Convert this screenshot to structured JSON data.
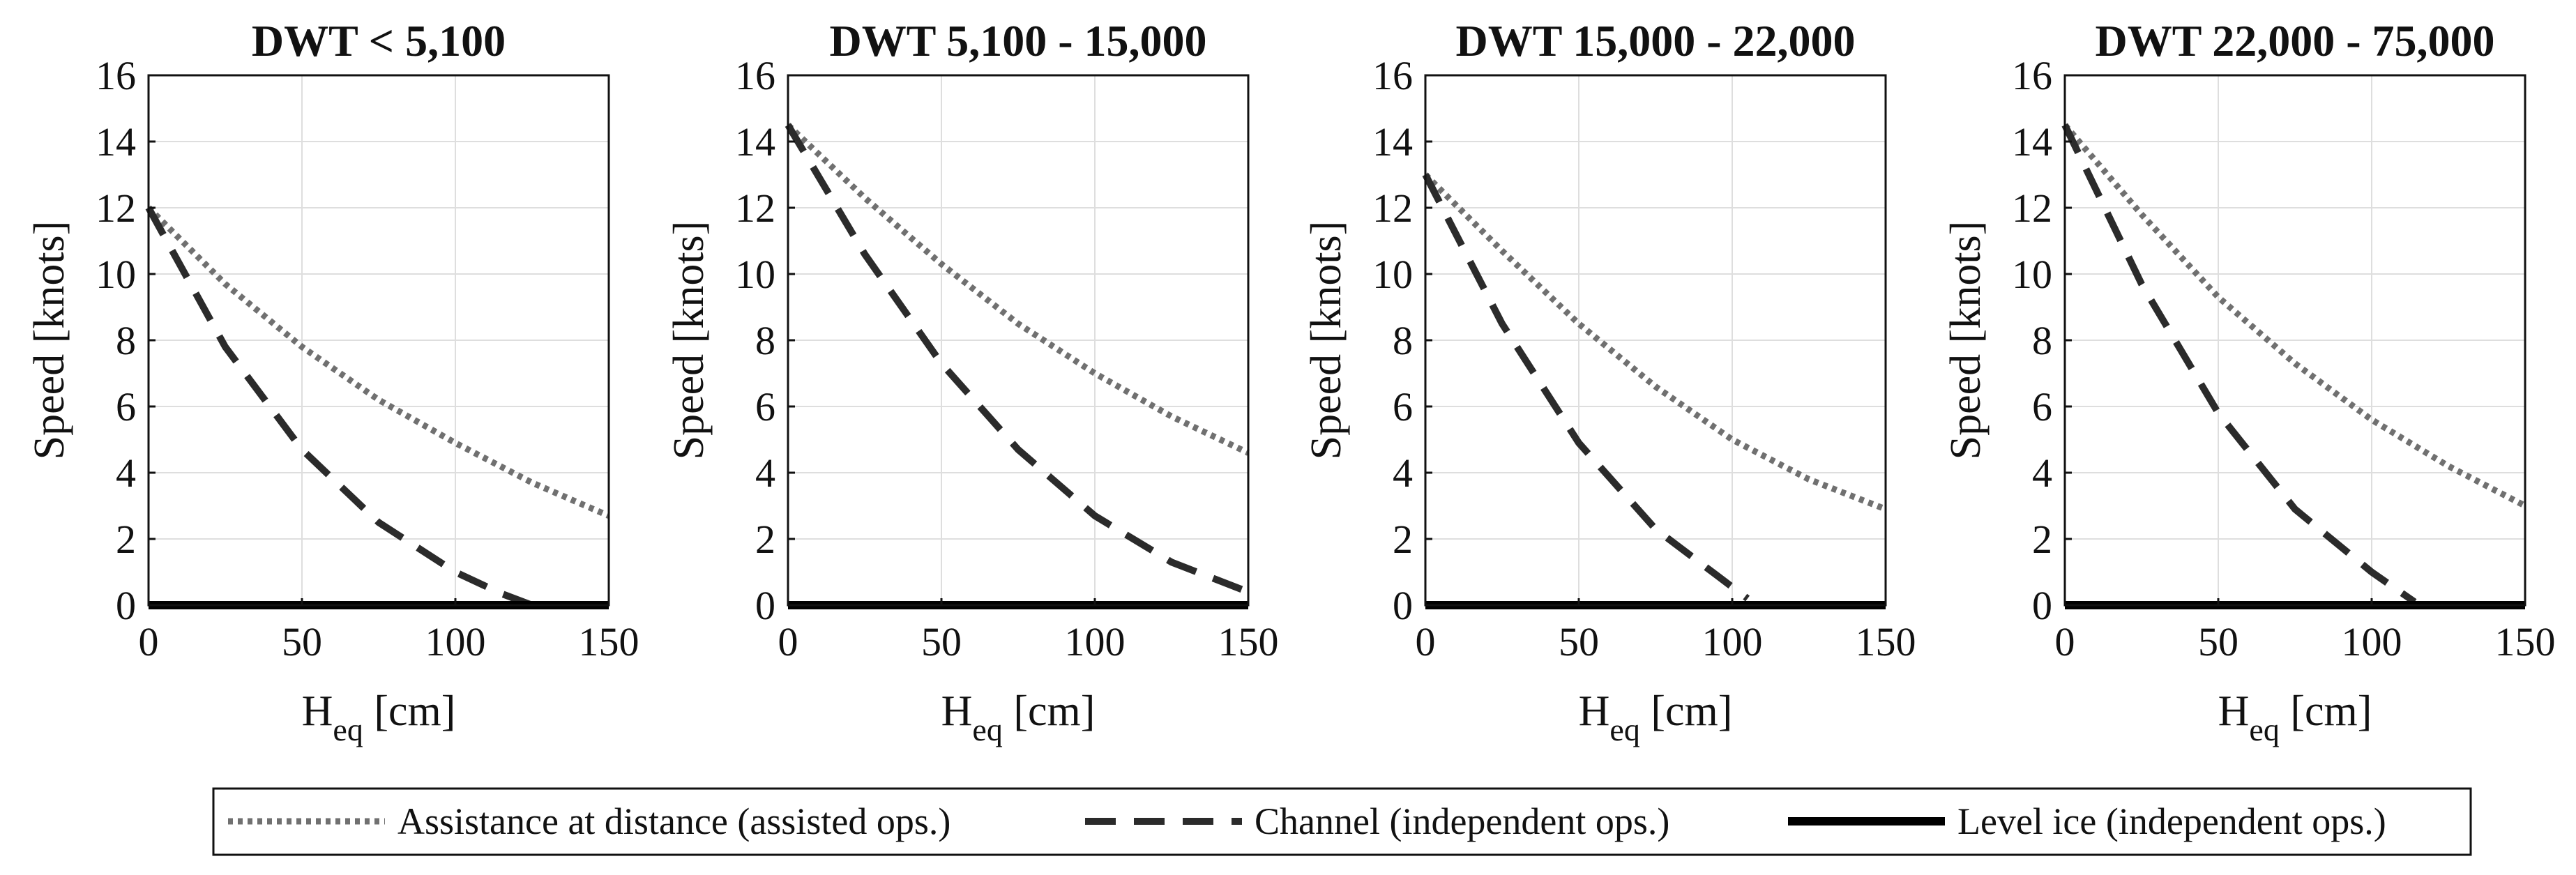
{
  "chart_data": [
    {
      "type": "line",
      "title": "DWT < 5,100",
      "xlabel": "H",
      "xlabel_sub": "eq",
      "xlabel_unit": "[cm]",
      "ylabel": "Speed [knots]",
      "xlim": [
        0,
        150
      ],
      "ylim": [
        0,
        16
      ],
      "xticks": [
        "0",
        "50",
        "100",
        "150"
      ],
      "yticks": [
        "0",
        "2",
        "4",
        "6",
        "8",
        "10",
        "12",
        "14",
        "16"
      ],
      "grid": true,
      "series": [
        {
          "name": "Assistance at distance (assisted ops.)",
          "style": "dotted",
          "color": "#707070",
          "x": [
            0,
            25,
            50,
            75,
            100,
            125,
            150
          ],
          "y": [
            12.0,
            9.7,
            7.8,
            6.2,
            4.9,
            3.7,
            2.7
          ]
        },
        {
          "name": "Channel (independent ops.)",
          "style": "dashed",
          "color": "#2b2b2b",
          "x": [
            0,
            25,
            50,
            75,
            100,
            115,
            125
          ],
          "y": [
            12.0,
            7.8,
            4.7,
            2.5,
            1.0,
            0.35,
            0.0
          ]
        },
        {
          "name": "Level ice (independent ops.)",
          "style": "solid",
          "color": "#000000",
          "x": [
            0,
            150
          ],
          "y": [
            0,
            0
          ]
        }
      ]
    },
    {
      "type": "line",
      "title": "DWT 5,100 - 15,000",
      "xlabel": "H",
      "xlabel_sub": "eq",
      "xlabel_unit": "[cm]",
      "ylabel": "Speed [knots]",
      "xlim": [
        0,
        150
      ],
      "ylim": [
        0,
        16
      ],
      "xticks": [
        "0",
        "50",
        "100",
        "150"
      ],
      "yticks": [
        "0",
        "2",
        "4",
        "6",
        "8",
        "10",
        "12",
        "14",
        "16"
      ],
      "grid": true,
      "series": [
        {
          "name": "Assistance at distance (assisted ops.)",
          "style": "dotted",
          "color": "#707070",
          "x": [
            0,
            25,
            50,
            75,
            100,
            125,
            150
          ],
          "y": [
            14.5,
            12.3,
            10.3,
            8.5,
            7.0,
            5.7,
            4.6
          ]
        },
        {
          "name": "Channel (independent ops.)",
          "style": "dashed",
          "color": "#2b2b2b",
          "x": [
            0,
            25,
            50,
            75,
            100,
            125,
            150
          ],
          "y": [
            14.5,
            10.6,
            7.3,
            4.7,
            2.7,
            1.3,
            0.4
          ]
        },
        {
          "name": "Level ice (independent ops.)",
          "style": "solid",
          "color": "#000000",
          "x": [
            0,
            150
          ],
          "y": [
            0,
            0
          ]
        }
      ]
    },
    {
      "type": "line",
      "title": "DWT 15,000 - 22,000",
      "xlabel": "H",
      "xlabel_sub": "eq",
      "xlabel_unit": "[cm]",
      "ylabel": "Speed [knots]",
      "xlim": [
        0,
        150
      ],
      "ylim": [
        0,
        16
      ],
      "xticks": [
        "0",
        "50",
        "100",
        "150"
      ],
      "yticks": [
        "0",
        "2",
        "4",
        "6",
        "8",
        "10",
        "12",
        "14",
        "16"
      ],
      "grid": true,
      "series": [
        {
          "name": "Assistance at distance (assisted ops.)",
          "style": "dotted",
          "color": "#707070",
          "x": [
            0,
            25,
            50,
            75,
            100,
            125,
            150
          ],
          "y": [
            13.0,
            10.7,
            8.5,
            6.6,
            5.0,
            3.8,
            2.9
          ]
        },
        {
          "name": "Channel (independent ops.)",
          "style": "dashed",
          "color": "#2b2b2b",
          "x": [
            0,
            25,
            50,
            75,
            95,
            105
          ],
          "y": [
            13.0,
            8.5,
            4.9,
            2.3,
            0.9,
            0.2
          ]
        },
        {
          "name": "Level ice (independent ops.)",
          "style": "solid",
          "color": "#000000",
          "x": [
            0,
            150
          ],
          "y": [
            0,
            0
          ]
        }
      ]
    },
    {
      "type": "line",
      "title": "DWT 22,000 - 75,000",
      "xlabel": "H",
      "xlabel_sub": "eq",
      "xlabel_unit": "[cm]",
      "ylabel": "Speed [knots]",
      "xlim": [
        0,
        150
      ],
      "ylim": [
        0,
        16
      ],
      "xticks": [
        "0",
        "50",
        "100",
        "150"
      ],
      "yticks": [
        "0",
        "2",
        "4",
        "6",
        "8",
        "10",
        "12",
        "14",
        "16"
      ],
      "grid": true,
      "series": [
        {
          "name": "Assistance at distance (assisted ops.)",
          "style": "dotted",
          "color": "#707070",
          "x": [
            0,
            25,
            50,
            75,
            100,
            125,
            150
          ],
          "y": [
            14.5,
            11.8,
            9.3,
            7.3,
            5.6,
            4.2,
            3.0
          ]
        },
        {
          "name": "Channel (independent ops.)",
          "style": "dashed",
          "color": "#2b2b2b",
          "x": [
            0,
            25,
            50,
            75,
            100,
            114
          ],
          "y": [
            14.5,
            9.7,
            5.8,
            2.9,
            1.0,
            0.1
          ]
        },
        {
          "name": "Level ice (independent ops.)",
          "style": "solid",
          "color": "#000000",
          "x": [
            0,
            150
          ],
          "y": [
            0,
            0
          ]
        }
      ]
    }
  ],
  "legend": {
    "position": "bottom",
    "items": [
      {
        "label": "Assistance at distance (assisted ops.)",
        "style": "dotted",
        "color": "#707070"
      },
      {
        "label": "Channel (independent ops.)",
        "style": "dashed",
        "color": "#2b2b2b"
      },
      {
        "label": "Level ice (independent ops.)",
        "style": "solid",
        "color": "#000000"
      }
    ]
  }
}
